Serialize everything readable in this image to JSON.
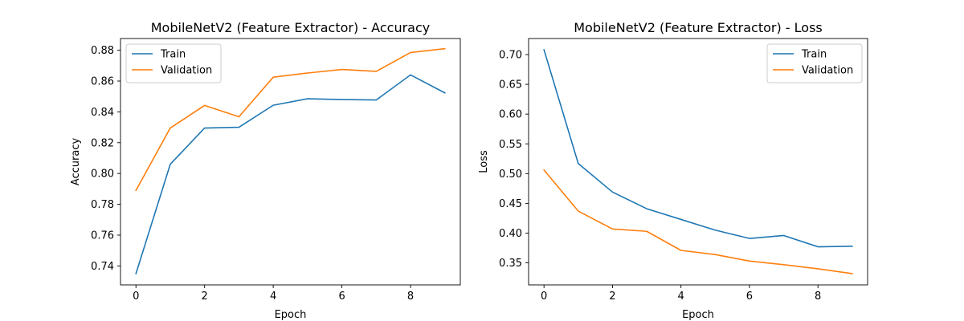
{
  "chart_data": [
    {
      "type": "line",
      "title": "MobileNetV2 (Feature Extractor) - Accuracy",
      "xlabel": "Epoch",
      "ylabel": "Accuracy",
      "xlim": [
        -0.45,
        9.45
      ],
      "ylim": [
        0.7277,
        0.8876
      ],
      "xticks": [
        0,
        2,
        4,
        6,
        8
      ],
      "yticks": [
        0.74,
        0.76,
        0.78,
        0.8,
        0.82,
        0.84,
        0.86,
        0.88
      ],
      "ytick_labels": [
        "0.74",
        "0.76",
        "0.78",
        "0.80",
        "0.82",
        "0.84",
        "0.86",
        "0.88"
      ],
      "grid": false,
      "legend_position": "top-left",
      "x": [
        0,
        1,
        2,
        3,
        4,
        5,
        6,
        7,
        8,
        9
      ],
      "series": [
        {
          "name": "Train",
          "color": "#1f77b4",
          "values": [
            0.735,
            0.806,
            0.8295,
            0.83,
            0.8443,
            0.8485,
            0.848,
            0.8477,
            0.864,
            0.8523
          ]
        },
        {
          "name": "Validation",
          "color": "#ff7f0e",
          "values": [
            0.789,
            0.8295,
            0.8442,
            0.8368,
            0.8625,
            0.8652,
            0.8675,
            0.8663,
            0.8785,
            0.881
          ]
        }
      ]
    },
    {
      "type": "line",
      "title": "MobileNetV2 (Feature Extractor) - Loss",
      "xlabel": "Epoch",
      "ylabel": "Loss",
      "xlim": [
        -0.45,
        9.45
      ],
      "ylim": [
        0.313,
        0.727
      ],
      "xticks": [
        0,
        2,
        4,
        6,
        8
      ],
      "yticks": [
        0.35,
        0.4,
        0.45,
        0.5,
        0.55,
        0.6,
        0.65,
        0.7
      ],
      "ytick_labels": [
        "0.35",
        "0.40",
        "0.45",
        "0.50",
        "0.55",
        "0.60",
        "0.65",
        "0.70"
      ],
      "grid": false,
      "legend_position": "top-right",
      "x": [
        0,
        1,
        2,
        3,
        4,
        5,
        6,
        7,
        8,
        9
      ],
      "series": [
        {
          "name": "Train",
          "color": "#1f77b4",
          "values": [
            0.708,
            0.517,
            0.469,
            0.441,
            0.423,
            0.405,
            0.391,
            0.396,
            0.377,
            0.378
          ]
        },
        {
          "name": "Validation",
          "color": "#ff7f0e",
          "values": [
            0.506,
            0.437,
            0.407,
            0.403,
            0.371,
            0.364,
            0.353,
            0.347,
            0.34,
            0.332
          ]
        }
      ]
    }
  ]
}
